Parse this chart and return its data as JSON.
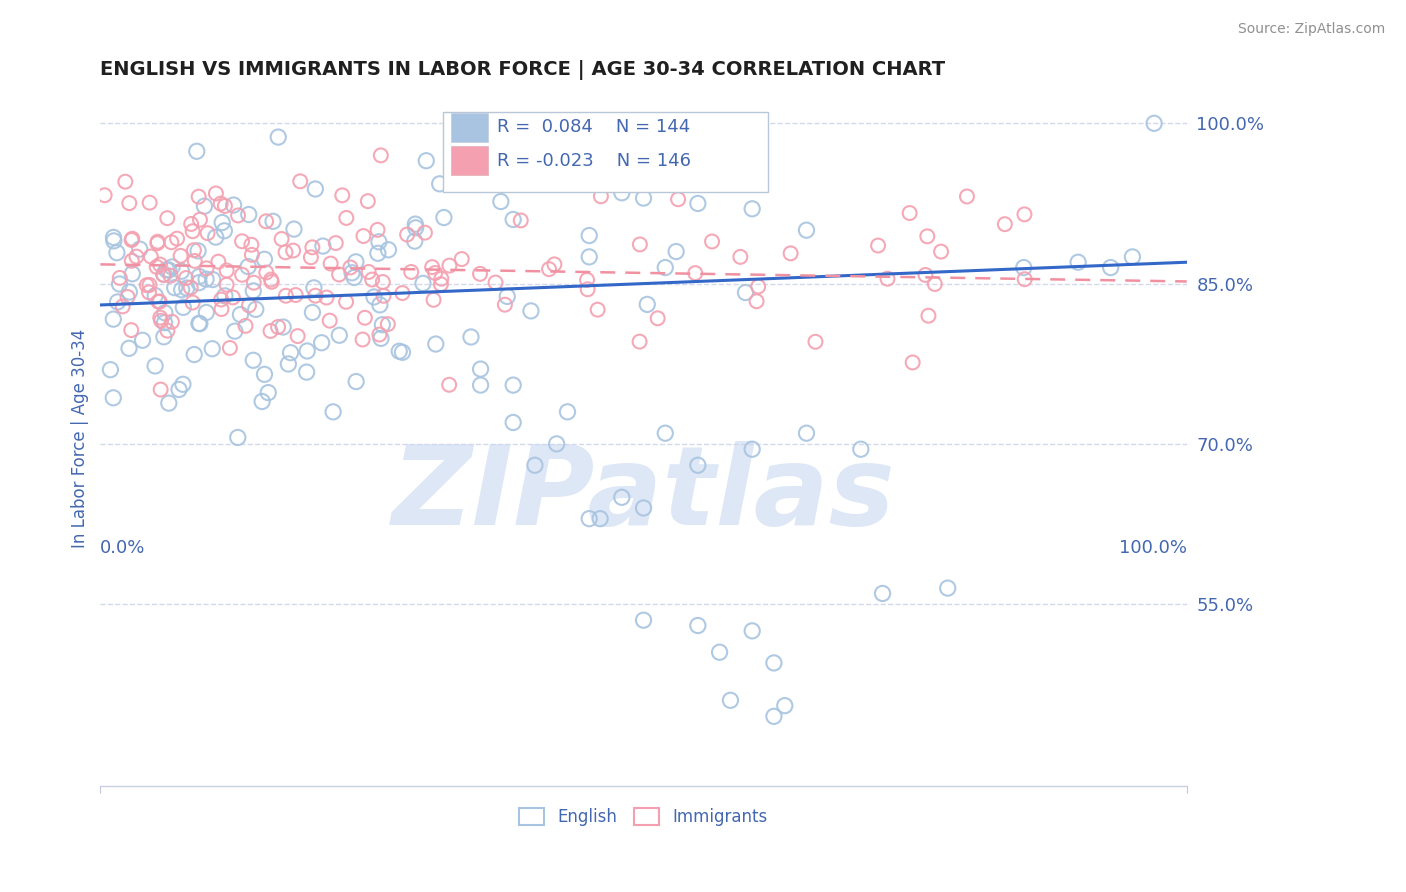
{
  "title": "ENGLISH VS IMMIGRANTS IN LABOR FORCE | AGE 30-34 CORRELATION CHART",
  "source": "Source: ZipAtlas.com",
  "ylabel": "In Labor Force | Age 30-34",
  "xlim": [
    0.0,
    1.0
  ],
  "ylim": [
    0.38,
    1.03
  ],
  "yticks": [
    0.55,
    0.7,
    0.85,
    1.0
  ],
  "ytick_labels": [
    "55.0%",
    "70.0%",
    "85.0%",
    "100.0%"
  ],
  "xticks": [
    0.0,
    1.0
  ],
  "xtick_labels": [
    "0.0%",
    "100.0%"
  ],
  "english_color": "#a8c4e0",
  "immigrants_color": "#f4a0b0",
  "english_line_color": "#3368c8",
  "immigrants_line_color": "#f090a0",
  "R_english": 0.084,
  "N_english": 144,
  "R_immigrants": -0.023,
  "N_immigrants": 146,
  "watermark": "ZIPatlas",
  "watermark_color": "#c8d8f0",
  "grid_color": "#c8d0e8",
  "title_color": "#202020",
  "tick_label_color": "#4468b0",
  "background_color": "#ffffff"
}
